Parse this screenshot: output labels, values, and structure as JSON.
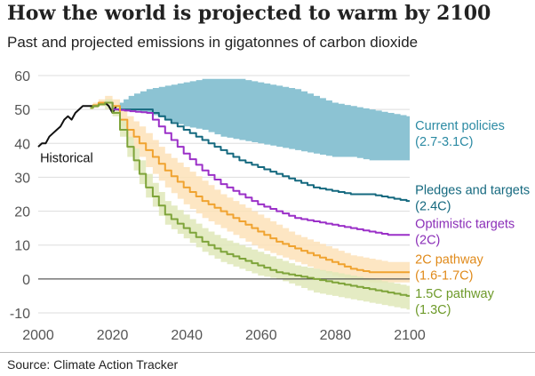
{
  "header": {
    "title": "How the world is projected to warm by 2100",
    "subtitle": "Past and projected emissions in gigatonnes of carbon dioxide"
  },
  "footer": {
    "source": "Source: Climate Action Tracker"
  },
  "colors": {
    "historical": "#111111",
    "current": "#8cc3d3",
    "pledges": "#15697f",
    "optimistic": "#9b30c8",
    "two_c": "#f0a330",
    "two_c_band": "#fde2b8",
    "one_five": "#7ea43a",
    "one_five_band": "#dfe8b8",
    "pledges_label": "#15697f",
    "current_label": "#2b8aa3",
    "two_c_label": "#e08a1a",
    "one_five_label": "#6e9a2a",
    "optimistic_label": "#8b2fb8",
    "axis_text": "#555555",
    "grid": "#dddddd"
  },
  "chart_data": {
    "type": "line",
    "xlim": [
      2000,
      2100
    ],
    "ylim": [
      -10,
      60
    ],
    "grid": true,
    "xticks": [
      2000,
      2020,
      2040,
      2060,
      2080,
      2100
    ],
    "yticks": [
      -10,
      0,
      10,
      20,
      30,
      40,
      50,
      60
    ],
    "historical": {
      "label": "Historical",
      "x": [
        2000,
        2001,
        2002,
        2003,
        2004,
        2005,
        2006,
        2007,
        2008,
        2009,
        2010,
        2011,
        2012,
        2013,
        2014,
        2015,
        2016,
        2017,
        2018,
        2019,
        2020,
        2021
      ],
      "y": [
        39,
        40,
        40,
        42,
        43,
        44,
        45,
        47,
        48,
        47,
        49,
        50,
        51,
        51,
        51,
        51,
        51,
        52,
        52,
        51,
        49,
        51
      ]
    },
    "bands": [
      {
        "key": "current",
        "x": [
          2021,
          2025,
          2030,
          2035,
          2040,
          2045,
          2050,
          2055,
          2060,
          2065,
          2070,
          2075,
          2080,
          2085,
          2090,
          2095,
          2100
        ],
        "lower": [
          50,
          50,
          49,
          47,
          45,
          44,
          42,
          41,
          40,
          39,
          38,
          37,
          36,
          36,
          35,
          35,
          35
        ],
        "upper": [
          51,
          54,
          56,
          57,
          58,
          59,
          59,
          59,
          58,
          57,
          56,
          54,
          52,
          51,
          50,
          49,
          48
        ]
      },
      {
        "key": "two_c",
        "x": [
          2014,
          2017,
          2019,
          2021,
          2023,
          2025,
          2028,
          2030,
          2035,
          2040,
          2045,
          2050,
          2055,
          2060,
          2065,
          2070,
          2075,
          2080,
          2085,
          2090,
          2095,
          2100
        ],
        "lower": [
          50,
          51,
          51,
          49,
          45,
          41,
          36,
          33,
          27,
          22,
          18,
          15,
          12,
          9,
          7,
          5,
          3,
          1,
          0,
          -1,
          -1,
          -1
        ],
        "upper": [
          51,
          53,
          54,
          53,
          50,
          48,
          45,
          43,
          37,
          33,
          29,
          25,
          22,
          19,
          16,
          13,
          11,
          9,
          7,
          6,
          5,
          5
        ]
      },
      {
        "key": "one_five",
        "x": [
          2014,
          2017,
          2019,
          2021,
          2023,
          2025,
          2028,
          2030,
          2035,
          2040,
          2045,
          2050,
          2055,
          2060,
          2065,
          2070,
          2075,
          2080,
          2085,
          2090,
          2095,
          2100
        ],
        "lower": [
          50,
          51,
          50,
          48,
          42,
          36,
          28,
          24,
          16,
          12,
          8,
          5,
          3,
          1,
          0,
          -2,
          -4,
          -5,
          -6,
          -7,
          -8,
          -9
        ],
        "upper": [
          51,
          52,
          53,
          51,
          47,
          42,
          35,
          31,
          23,
          19,
          15,
          12,
          10,
          8,
          6,
          4,
          3,
          2,
          1,
          0,
          -1,
          -2
        ]
      }
    ],
    "series": [
      {
        "key": "pledges",
        "name": "Pledges and targets",
        "x": [
          2019,
          2021,
          2030,
          2035,
          2040,
          2045,
          2050,
          2055,
          2060,
          2065,
          2070,
          2075,
          2080,
          2085,
          2090,
          2095,
          2100
        ],
        "y": [
          52,
          50,
          50,
          47,
          44,
          41,
          38,
          35,
          33,
          31,
          29,
          27,
          26,
          25,
          25,
          24,
          23
        ]
      },
      {
        "key": "optimistic",
        "name": "Optimistic targets",
        "x": [
          2019,
          2021,
          2030,
          2035,
          2040,
          2045,
          2050,
          2055,
          2060,
          2065,
          2070,
          2075,
          2080,
          2085,
          2090,
          2095,
          2100
        ],
        "y": [
          52,
          50,
          49,
          43,
          37,
          32,
          28,
          25,
          22,
          20,
          18,
          17,
          16,
          15,
          14,
          13,
          13
        ]
      },
      {
        "key": "two_c",
        "name": "2C pathway",
        "x": [
          2014,
          2017,
          2019,
          2021,
          2023,
          2025,
          2028,
          2030,
          2035,
          2040,
          2045,
          2050,
          2055,
          2060,
          2065,
          2070,
          2075,
          2080,
          2085,
          2090,
          2095,
          2100
        ],
        "y": [
          50.5,
          52,
          52,
          51,
          47,
          44,
          40,
          38,
          32,
          27,
          23,
          20,
          17,
          14,
          11,
          9,
          7,
          5,
          3,
          2,
          2,
          2
        ]
      },
      {
        "key": "one_five",
        "name": "1.5C pathway",
        "x": [
          2014,
          2017,
          2019,
          2021,
          2023,
          2025,
          2028,
          2030,
          2035,
          2040,
          2045,
          2050,
          2055,
          2060,
          2065,
          2070,
          2075,
          2080,
          2085,
          2090,
          2095,
          2100
        ],
        "y": [
          50.5,
          51.5,
          52,
          49,
          44,
          39,
          31,
          27,
          19,
          15,
          11,
          8,
          6,
          4,
          2,
          1,
          0,
          -1,
          -2,
          -3,
          -4,
          -5
        ]
      }
    ],
    "labels": [
      {
        "key": "current_label",
        "x": 2101,
        "y": 44,
        "lines": [
          "Current policies",
          "(2.7-3.1C)"
        ]
      },
      {
        "key": "pledges_label",
        "x": 2101,
        "y": 25,
        "lines": [
          "Pledges and targets",
          "(2.4C)"
        ]
      },
      {
        "key": "optimistic_label",
        "x": 2101,
        "y": 15,
        "lines": [
          "Optimistic targets",
          "(2C)"
        ]
      },
      {
        "key": "two_c_label",
        "x": 2101,
        "y": 4.5,
        "lines": [
          "2C pathway",
          "(1.6-1.7C)"
        ]
      },
      {
        "key": "one_five_label",
        "x": 2101,
        "y": -5.5,
        "lines": [
          "1.5C pathway",
          "(1.3C)"
        ]
      },
      {
        "key": "historical",
        "x": 2000.5,
        "y": 34.5,
        "lines": [
          "Historical"
        ]
      }
    ]
  }
}
